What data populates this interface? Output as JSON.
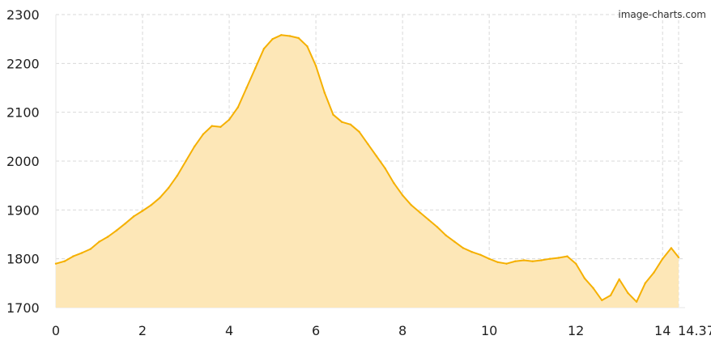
{
  "watermark": "image-charts.com",
  "chart_data": {
    "type": "area",
    "title": "",
    "xlabel": "",
    "ylabel": "",
    "xlim": [
      0,
      14.37
    ],
    "ylim": [
      1700,
      2300
    ],
    "x_ticks": [
      "0",
      "2",
      "4",
      "6",
      "8",
      "10",
      "12",
      "14",
      "14.37"
    ],
    "y_ticks": [
      "1700",
      "1800",
      "1900",
      "2000",
      "2100",
      "2200",
      "2300"
    ],
    "grid": true,
    "legend": "none",
    "colors": {
      "fill": "#FDE7B7",
      "line": "#F5B000"
    },
    "series": [
      {
        "name": "",
        "x": [
          0,
          0.2,
          0.4,
          0.6,
          0.8,
          1,
          1.2,
          1.4,
          1.6,
          1.8,
          2,
          2.2,
          2.4,
          2.6,
          2.8,
          3,
          3.2,
          3.4,
          3.6,
          3.8,
          4,
          4.2,
          4.4,
          4.6,
          4.8,
          5,
          5.2,
          5.4,
          5.6,
          5.8,
          6,
          6.2,
          6.4,
          6.6,
          6.8,
          7,
          7.2,
          7.4,
          7.6,
          7.8,
          8,
          8.2,
          8.4,
          8.6,
          8.8,
          9,
          9.2,
          9.4,
          9.6,
          9.8,
          10,
          10.2,
          10.4,
          10.6,
          10.8,
          11,
          11.2,
          11.4,
          11.6,
          11.8,
          12,
          12.2,
          12.4,
          12.6,
          12.8,
          13,
          13.2,
          13.4,
          13.6,
          13.8,
          14,
          14.2,
          14.37
        ],
        "values": [
          1790,
          1795,
          1805,
          1812,
          1820,
          1835,
          1845,
          1858,
          1872,
          1887,
          1898,
          1910,
          1925,
          1945,
          1970,
          2000,
          2030,
          2055,
          2072,
          2070,
          2085,
          2110,
          2150,
          2190,
          2230,
          2250,
          2258,
          2256,
          2252,
          2235,
          2195,
          2140,
          2095,
          2080,
          2075,
          2060,
          2035,
          2010,
          1985,
          1955,
          1930,
          1910,
          1895,
          1880,
          1865,
          1848,
          1835,
          1822,
          1814,
          1808,
          1800,
          1793,
          1790,
          1795,
          1797,
          1795,
          1797,
          1800,
          1802,
          1805,
          1790,
          1760,
          1740,
          1715,
          1725,
          1758,
          1730,
          1712,
          1750,
          1772,
          1800,
          1822,
          1803
        ]
      }
    ]
  }
}
